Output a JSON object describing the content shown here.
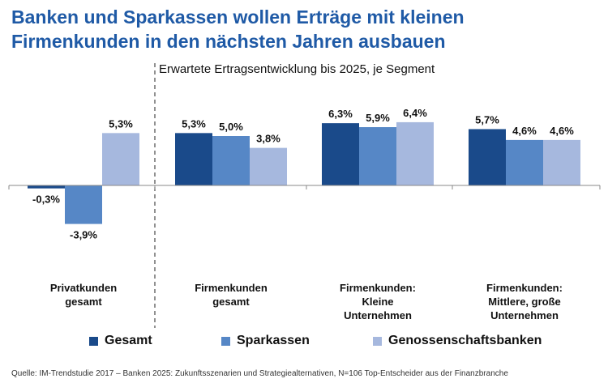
{
  "title_line1": "Banken und Sparkassen wollen Erträge mit kleinen",
  "title_line2": "Firmenkunden in den nächsten Jahren ausbauen",
  "subtitle": "Erwartete Ertragsentwicklung bis 2025, je Segment",
  "source": "Quelle: IM-Trendstudie 2017 – Banken 2025: Zukunftsszenarien und Strategiealternativen, N=106 Top-Entscheider aus der Finanzbranche",
  "colors": {
    "Gesamt": "#1a4a8a",
    "Sparkassen": "#5687c6",
    "Genossenschaftsbanken": "#a6b8de"
  },
  "chart_data": {
    "type": "bar",
    "categories": [
      [
        "Privatkunden",
        "gesamt"
      ],
      [
        "Firmenkunden",
        "gesamt"
      ],
      [
        "Firmenkunden:",
        "Kleine",
        "Unternehmen"
      ],
      [
        "Firmenkunden:",
        "Mittlere, große",
        "Unternehmen"
      ]
    ],
    "series": [
      {
        "name": "Gesamt",
        "values": [
          -0.3,
          5.3,
          6.3,
          5.7
        ]
      },
      {
        "name": "Sparkassen",
        "values": [
          -3.9,
          5.0,
          5.9,
          4.6
        ]
      },
      {
        "name": "Genossenschaftsbanken",
        "values": [
          5.3,
          3.8,
          6.4,
          4.6
        ]
      }
    ],
    "value_labels": [
      [
        "-0,3%",
        "5,3%",
        "6,3%",
        "5,7%"
      ],
      [
        "-3,9%",
        "5,0%",
        "5,9%",
        "4,6%"
      ],
      [
        "5,3%",
        "3,8%",
        "6,4%",
        "4,6%"
      ]
    ],
    "ylim": [
      -4,
      7
    ],
    "grid": false,
    "legend_position": "bottom"
  }
}
